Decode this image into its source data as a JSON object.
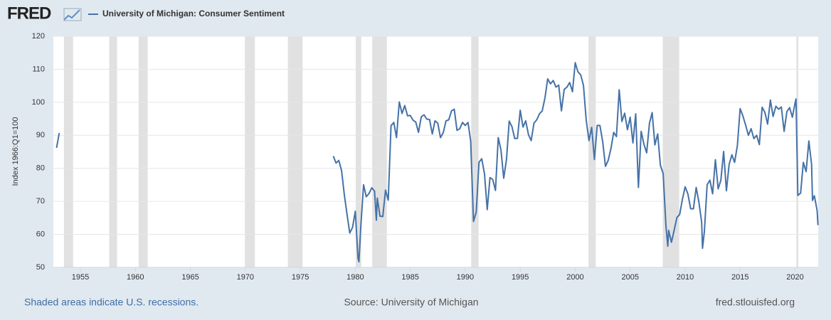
{
  "logo": "FRED",
  "chart_data": {
    "type": "line",
    "series": [
      {
        "name": "University of Michigan: Consumer Sentiment",
        "color": "#4572a7",
        "x": [
          1952.83,
          1953.08,
          1953.2,
          1978.0,
          1978.25,
          1978.5,
          1978.75,
          1979.0,
          1979.25,
          1979.5,
          1979.75,
          1980.0,
          1980.25,
          1980.33,
          1980.5,
          1980.75,
          1981.0,
          1981.25,
          1981.5,
          1981.75,
          1981.92,
          1982.0,
          1982.25,
          1982.5,
          1982.75,
          1983.0,
          1983.25,
          1983.5,
          1983.75,
          1984.0,
          1984.25,
          1984.5,
          1984.75,
          1985.0,
          1985.25,
          1985.5,
          1985.75,
          1986.0,
          1986.25,
          1986.5,
          1986.75,
          1987.0,
          1987.25,
          1987.5,
          1987.75,
          1988.0,
          1988.25,
          1988.5,
          1988.75,
          1989.0,
          1989.25,
          1989.5,
          1989.75,
          1990.0,
          1990.25,
          1990.5,
          1990.75,
          1991.0,
          1991.25,
          1991.5,
          1991.75,
          1992.0,
          1992.25,
          1992.5,
          1992.75,
          1993.0,
          1993.25,
          1993.5,
          1993.75,
          1994.0,
          1994.25,
          1994.5,
          1994.75,
          1995.0,
          1995.25,
          1995.5,
          1995.75,
          1996.0,
          1996.25,
          1996.5,
          1996.75,
          1997.0,
          1997.25,
          1997.5,
          1997.75,
          1998.0,
          1998.25,
          1998.5,
          1998.75,
          1999.0,
          1999.25,
          1999.5,
          1999.75,
          2000.0,
          2000.25,
          2000.5,
          2000.75,
          2001.0,
          2001.25,
          2001.5,
          2001.75,
          2002.0,
          2002.25,
          2002.5,
          2002.75,
          2003.0,
          2003.25,
          2003.5,
          2003.75,
          2004.0,
          2004.25,
          2004.5,
          2004.75,
          2005.0,
          2005.25,
          2005.5,
          2005.75,
          2006.0,
          2006.25,
          2006.5,
          2006.75,
          2007.0,
          2007.25,
          2007.5,
          2007.75,
          2008.0,
          2008.25,
          2008.42,
          2008.5,
          2008.75,
          2009.0,
          2009.25,
          2009.5,
          2009.75,
          2010.0,
          2010.25,
          2010.5,
          2010.75,
          2011.0,
          2011.25,
          2011.5,
          2011.58,
          2011.75,
          2012.0,
          2012.25,
          2012.5,
          2012.75,
          2013.0,
          2013.25,
          2013.5,
          2013.75,
          2014.0,
          2014.25,
          2014.5,
          2014.75,
          2015.0,
          2015.25,
          2015.5,
          2015.75,
          2016.0,
          2016.25,
          2016.5,
          2016.75,
          2017.0,
          2017.25,
          2017.5,
          2017.75,
          2018.0,
          2018.25,
          2018.5,
          2018.75,
          2019.0,
          2019.25,
          2019.5,
          2019.75,
          2020.0,
          2020.08,
          2020.25,
          2020.5,
          2020.75,
          2021.0,
          2021.25,
          2021.5,
          2021.58,
          2021.75,
          2022.0,
          2022.08
        ],
        "values": [
          86.2,
          90.7,
          null,
          83.7,
          81.6,
          82.4,
          79.3,
          72.1,
          66.0,
          60.4,
          62.1,
          67.0,
          52.7,
          51.7,
          62.3,
          75.0,
          71.4,
          72.4,
          74.1,
          73.1,
          64.3,
          71.0,
          65.5,
          65.4,
          73.4,
          70.4,
          92.9,
          93.9,
          89.3,
          100.1,
          96.6,
          99.0,
          95.9,
          96.0,
          94.6,
          94.0,
          90.9,
          95.6,
          96.2,
          94.9,
          94.8,
          90.4,
          94.4,
          93.7,
          89.3,
          90.8,
          94.4,
          94.7,
          97.4,
          97.9,
          91.5,
          92.0,
          93.9,
          93.0,
          93.9,
          88.2,
          63.9,
          66.8,
          81.8,
          82.9,
          78.3,
          67.5,
          77.2,
          76.6,
          73.3,
          89.3,
          85.6,
          77.0,
          82.7,
          94.3,
          92.6,
          89.0,
          89.1,
          97.6,
          92.5,
          94.4,
          90.2,
          88.4,
          93.7,
          94.7,
          96.5,
          97.4,
          101.4,
          107.1,
          105.6,
          106.6,
          104.6,
          105.2,
          97.4,
          103.9,
          104.6,
          106.0,
          103.2,
          112.0,
          109.2,
          108.3,
          105.1,
          94.7,
          88.4,
          92.4,
          82.7,
          93.0,
          93.0,
          88.1,
          80.6,
          82.4,
          86.0,
          90.9,
          89.6,
          103.8,
          94.2,
          96.7,
          91.7,
          95.5,
          87.7,
          96.5,
          74.2,
          91.2,
          87.4,
          84.7,
          93.6,
          96.9,
          87.1,
          90.4,
          80.9,
          78.4,
          62.6,
          56.4,
          61.2,
          57.6,
          61.2,
          65.1,
          66.0,
          70.6,
          74.4,
          72.2,
          67.8,
          67.7,
          74.2,
          69.8,
          63.7,
          55.8,
          60.8,
          75.0,
          76.4,
          72.3,
          82.6,
          73.8,
          76.4,
          85.1,
          73.2,
          81.2,
          84.1,
          81.8,
          86.9,
          98.1,
          95.9,
          93.1,
          90.0,
          92.0,
          89.0,
          90.0,
          87.2,
          98.5,
          97.0,
          93.4,
          100.7,
          95.7,
          98.8,
          97.9,
          98.6,
          91.2,
          97.2,
          98.4,
          95.5,
          99.8,
          101.0,
          71.8,
          72.5,
          81.8,
          79.0,
          88.3,
          81.2,
          70.3,
          71.7,
          67.2,
          62.8
        ]
      }
    ],
    "y_label": "Index 1966:Q1=100",
    "xlim": [
      1952.54,
      2022.1
    ],
    "xticks": [
      1955,
      1960,
      1965,
      1970,
      1975,
      1980,
      1985,
      1990,
      1995,
      2000,
      2005,
      2010,
      2015,
      2020
    ],
    "ylim": [
      50,
      120
    ],
    "yticks": [
      50,
      60,
      70,
      80,
      90,
      100,
      110,
      120
    ],
    "grid": true,
    "recessions": [
      [
        1953.5,
        1954.33
      ],
      [
        1957.62,
        1958.33
      ],
      [
        1960.29,
        1961.12
      ],
      [
        1969.96,
        1970.87
      ],
      [
        1973.87,
        1975.21
      ],
      [
        1980.04,
        1980.54
      ],
      [
        1981.54,
        1982.87
      ],
      [
        1990.54,
        1991.21
      ],
      [
        2001.21,
        2001.87
      ],
      [
        2007.96,
        2009.46
      ],
      [
        2020.12,
        2020.29
      ]
    ]
  },
  "footer": {
    "note": "Shaded areas indicate U.S. recessions.",
    "source": "Source: University of Michigan",
    "site": "fred.stlouisfed.org"
  }
}
